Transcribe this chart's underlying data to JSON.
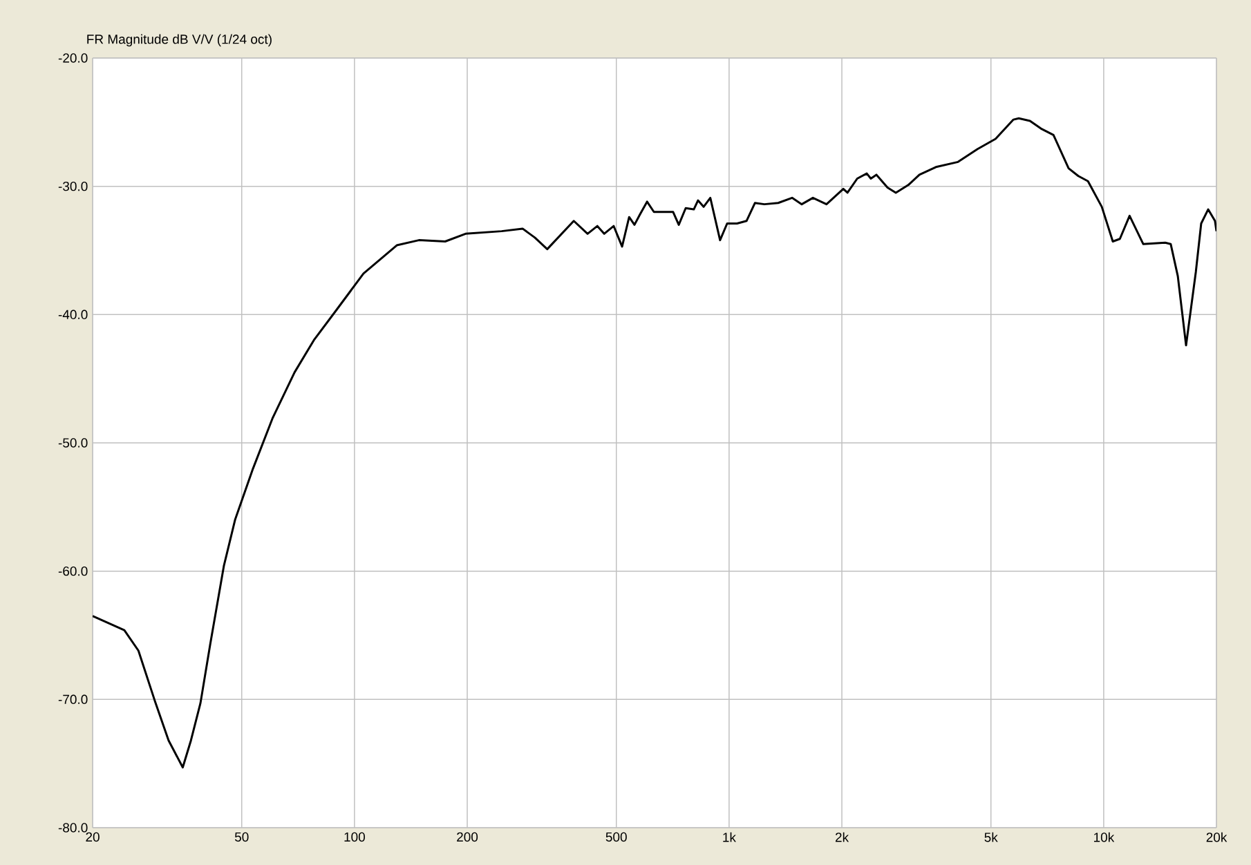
{
  "chart_data": {
    "type": "line",
    "title": "FR Magnitude dB V/V (1/24 oct)",
    "log": "x",
    "grid": true,
    "xlim": [
      20,
      20000
    ],
    "ylim": [
      -80,
      -20
    ],
    "xticks": [
      20,
      50,
      100,
      200,
      500,
      {
        "value": 1000,
        "label": "1k"
      },
      {
        "value": 2000,
        "label": "2k"
      },
      {
        "value": 5000,
        "label": "5k"
      },
      {
        "value": 10000,
        "label": "10k"
      },
      {
        "value": 20000,
        "label": "20k"
      }
    ],
    "yticks": [
      {
        "value": -80,
        "label": "-80.0"
      },
      {
        "value": -70,
        "label": "-70.0"
      },
      {
        "value": -60,
        "label": "-60.0"
      },
      {
        "value": -50,
        "label": "-50.0"
      },
      {
        "value": -40,
        "label": "-40.0"
      },
      {
        "value": -30,
        "label": "-30.0"
      },
      {
        "value": -20,
        "label": "-20.0"
      }
    ],
    "series": [
      {
        "color": "#000000",
        "x": [
          20,
          24.3,
          26.5,
          29.3,
          31.9,
          34.8,
          36.6,
          38.8,
          41.2,
          44.8,
          48,
          53.6,
          60.4,
          69.2,
          77.9,
          89.2,
          105.7,
          129.7,
          148.6,
          174.6,
          198,
          247,
          281,
          303,
          327,
          385,
          419,
          445,
          464,
          492,
          518,
          541,
          559,
          578,
          604,
          630,
          679,
          709,
          734,
          766,
          805,
          826,
          855,
          891,
          946,
          988,
          1050,
          1113,
          1172,
          1242,
          1352,
          1473,
          1563,
          1674,
          1820,
          2018,
          2070,
          2198,
          2331,
          2390,
          2473,
          2648,
          2787,
          3008,
          3222,
          3565,
          4085,
          4604,
          5144,
          5742,
          5934,
          6357,
          6800,
          7343,
          8059,
          8554,
          9078,
          9885,
          10576,
          11045,
          11724,
          12747,
          14594,
          15097,
          15770,
          16590,
          17615,
          18207,
          19003,
          19820,
          20000
        ],
        "values": [
          -63.5,
          -64.6,
          -66.2,
          -70.1,
          -73.2,
          -75.3,
          -73.2,
          -70.3,
          -65.7,
          -59.6,
          -56.0,
          -52.0,
          -48.1,
          -44.5,
          -42.0,
          -39.7,
          -36.8,
          -34.6,
          -34.2,
          -34.3,
          -33.7,
          -33.5,
          -33.3,
          -34.0,
          -34.9,
          -32.7,
          -33.7,
          -33.1,
          -33.7,
          -33.1,
          -34.7,
          -32.4,
          -33.0,
          -32.2,
          -31.2,
          -32.0,
          -32.0,
          -32.0,
          -33.0,
          -31.7,
          -31.8,
          -31.1,
          -31.6,
          -30.9,
          -34.2,
          -32.9,
          -32.9,
          -32.7,
          -31.3,
          -31.4,
          -31.3,
          -30.9,
          -31.4,
          -30.9,
          -31.4,
          -30.2,
          -30.5,
          -29.4,
          -29.0,
          -29.4,
          -29.1,
          -30.1,
          -30.5,
          -29.9,
          -29.1,
          -28.5,
          -28.1,
          -27.1,
          -26.3,
          -24.8,
          -24.7,
          -24.9,
          -25.5,
          -26.0,
          -28.6,
          -29.2,
          -29.6,
          -31.6,
          -34.3,
          -34.1,
          -32.3,
          -34.5,
          -34.4,
          -34.5,
          -37.0,
          -42.4,
          -36.7,
          -32.9,
          -31.8,
          -32.7,
          -33.5
        ]
      }
    ]
  }
}
